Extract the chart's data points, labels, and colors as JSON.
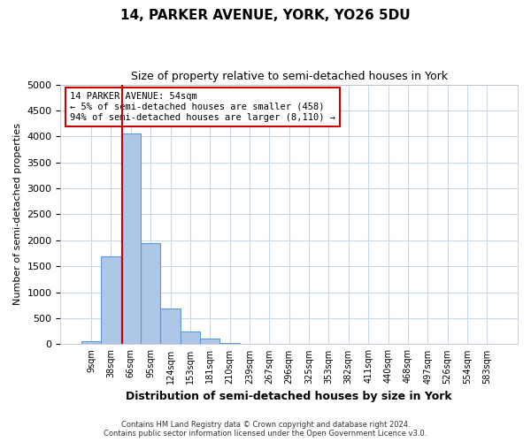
{
  "title1": "14, PARKER AVENUE, YORK, YO26 5DU",
  "title2": "Size of property relative to semi-detached houses in York",
  "xlabel": "Distribution of semi-detached houses by size in York",
  "ylabel": "Number of semi-detached properties",
  "bin_labels": [
    "9sqm",
    "38sqm",
    "66sqm",
    "95sqm",
    "124sqm",
    "153sqm",
    "181sqm",
    "210sqm",
    "239sqm",
    "267sqm",
    "296sqm",
    "325sqm",
    "353sqm",
    "382sqm",
    "411sqm",
    "440sqm",
    "468sqm",
    "497sqm",
    "526sqm",
    "554sqm",
    "583sqm"
  ],
  "bar_heights": [
    50,
    1700,
    4050,
    1950,
    680,
    250,
    110,
    30,
    0,
    0,
    0,
    0,
    0,
    0,
    0,
    0,
    0,
    0,
    0,
    0,
    0
  ],
  "bar_color": "#aec6e8",
  "bar_edge_color": "#5b9bd5",
  "vline_x": 1.55,
  "vline_color": "#cc0000",
  "annotation_line1": "14 PARKER AVENUE: 54sqm",
  "annotation_line2": "← 5% of semi-detached houses are smaller (458)",
  "annotation_line3": "94% of semi-detached houses are larger (8,110) →",
  "annotation_box_color": "#ffffff",
  "annotation_box_edge_color": "#cc0000",
  "ylim": [
    0,
    5000
  ],
  "yticks": [
    0,
    500,
    1000,
    1500,
    2000,
    2500,
    3000,
    3500,
    4000,
    4500,
    5000
  ],
  "footer1": "Contains HM Land Registry data © Crown copyright and database right 2024.",
  "footer2": "Contains public sector information licensed under the Open Government Licence v3.0.",
  "background_color": "#ffffff",
  "grid_color": "#c8d8e8"
}
